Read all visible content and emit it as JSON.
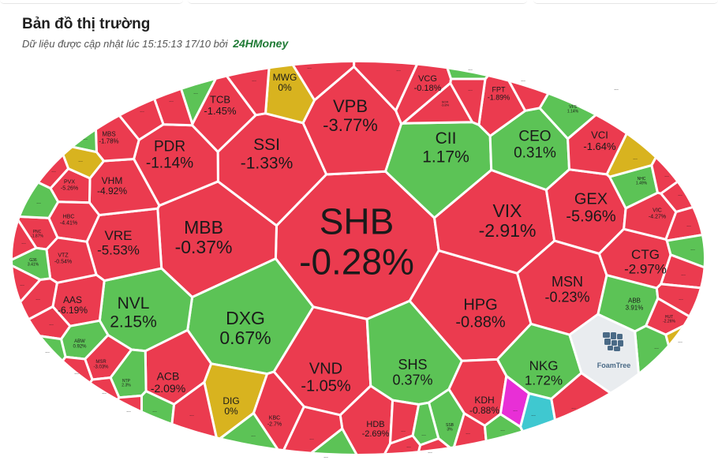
{
  "header": {
    "title": "Bản đồ thị trường",
    "updated_prefix": "Dữ liệu được cập nhật lúc 15:15:13 17/10 bởi",
    "brand": "24HMoney"
  },
  "colors": {
    "up": "#5cc356",
    "down": "#eb3b4f",
    "flat": "#d8b31f",
    "ceiling": "#e82fd6",
    "floor": "#3fc8d0",
    "border": "#ffffff"
  },
  "watermark": "FoamTree",
  "more_label": "...",
  "chart_data": {
    "type": "treemap",
    "layout": "voronoi-ellipse",
    "cells": [
      {
        "ticker": "SHB",
        "change": "-0.28%",
        "status": "down"
      },
      {
        "ticker": "MBB",
        "change": "-0.37%",
        "status": "down"
      },
      {
        "ticker": "DXG",
        "change": "0.67%",
        "status": "up"
      },
      {
        "ticker": "NVL",
        "change": "2.15%",
        "status": "up"
      },
      {
        "ticker": "VND",
        "change": "-1.05%",
        "status": "down"
      },
      {
        "ticker": "HPG",
        "change": "-0.88%",
        "status": "down"
      },
      {
        "ticker": "VIX",
        "change": "-2.91%",
        "status": "down"
      },
      {
        "ticker": "VPB",
        "change": "-3.77%",
        "status": "down"
      },
      {
        "ticker": "SSI",
        "change": "-1.33%",
        "status": "down"
      },
      {
        "ticker": "PDR",
        "change": "-1.14%",
        "status": "down"
      },
      {
        "ticker": "CII",
        "change": "1.17%",
        "status": "up"
      },
      {
        "ticker": "CEO",
        "change": "0.31%",
        "status": "up"
      },
      {
        "ticker": "GEX",
        "change": "-5.96%",
        "status": "down"
      },
      {
        "ticker": "MSN",
        "change": "-0.23%",
        "status": "down"
      },
      {
        "ticker": "CTG",
        "change": "-2.97%",
        "status": "down"
      },
      {
        "ticker": "SHS",
        "change": "0.37%",
        "status": "up"
      },
      {
        "ticker": "NKG",
        "change": "1.72%",
        "status": "up"
      },
      {
        "ticker": "VRE",
        "change": "-5.53%",
        "status": "down"
      },
      {
        "ticker": "VHM",
        "change": "-4.92%",
        "status": "down"
      },
      {
        "ticker": "TCB",
        "change": "-1.45%",
        "status": "down"
      },
      {
        "ticker": "VCI",
        "change": "-1.64%",
        "status": "down"
      },
      {
        "ticker": "ACB",
        "change": "-2.09%",
        "status": "down"
      },
      {
        "ticker": "AAS",
        "change": "-6.19%",
        "status": "down"
      },
      {
        "ticker": "KDH",
        "change": "-0.88%",
        "status": "down"
      },
      {
        "ticker": "HDB",
        "change": "-2.69%",
        "status": "down"
      },
      {
        "ticker": "DIG",
        "change": "0%",
        "status": "flat"
      },
      {
        "ticker": "MWG",
        "change": "0%",
        "status": "flat"
      },
      {
        "ticker": "VCG",
        "change": "-0.18%",
        "status": "down"
      },
      {
        "ticker": "FPT",
        "change": "-1.89%",
        "status": "down"
      },
      {
        "ticker": "MBS",
        "change": "-1.78%",
        "status": "down"
      },
      {
        "ticker": "PVX",
        "change": "-5.26%",
        "status": "down"
      },
      {
        "ticker": "HBC",
        "change": "-4.41%",
        "status": "down"
      },
      {
        "ticker": "VTZ",
        "change": "-0.54%",
        "status": "down"
      },
      {
        "ticker": "PNC",
        "change": "-1.87%",
        "status": "down"
      },
      {
        "ticker": "G36",
        "change": "3.41%",
        "status": "up"
      },
      {
        "ticker": "ABW",
        "change": "0.92%",
        "status": "up"
      },
      {
        "ticker": "MSR",
        "change": "-3.03%",
        "status": "down"
      },
      {
        "ticker": "NTP",
        "change": "2.3%",
        "status": "up"
      },
      {
        "ticker": "KBC",
        "change": "-2.7%",
        "status": "down"
      },
      {
        "ticker": "SSB",
        "change": "3%",
        "status": "up"
      },
      {
        "ticker": "VFS",
        "change": "1.14%",
        "status": "up"
      },
      {
        "ticker": "VIC",
        "change": "-4.27%",
        "status": "down"
      },
      {
        "ticker": "NHC",
        "change": "1.49%",
        "status": "up"
      },
      {
        "ticker": "ABB",
        "change": "3.91%",
        "status": "up"
      },
      {
        "ticker": "HUT",
        "change": "-2.26%",
        "status": "down"
      },
      {
        "ticker": "SCR",
        "change": "-3.8%",
        "status": "down"
      }
    ],
    "minor_cells": [
      "down",
      "down",
      "up",
      "down",
      "down",
      "up",
      "flat",
      "down",
      "up",
      "down",
      "down",
      "down",
      "down",
      "up",
      "down",
      "down",
      "down",
      "up",
      "down",
      "up",
      "down",
      "up",
      "down",
      "down",
      "up",
      "down",
      "down",
      "up",
      "ceiling",
      "floor",
      "down",
      "down",
      "flat",
      "down"
    ]
  }
}
